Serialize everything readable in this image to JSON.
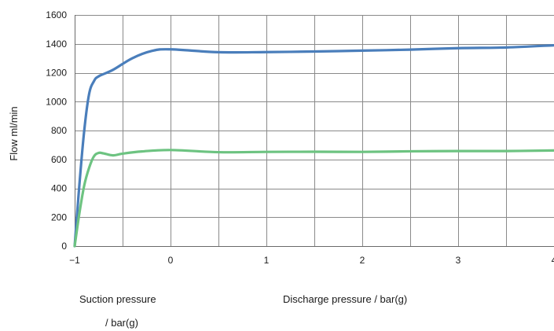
{
  "chart_data": {
    "type": "line",
    "title": "",
    "ylabel": "Flow ml/min",
    "xlabel_suction": [
      "Suction pressure",
      "/ bar(g)"
    ],
    "xlabel_discharge": "Discharge pressure / bar(g)",
    "xlim": [
      -1,
      4
    ],
    "ylim": [
      0,
      1600
    ],
    "grid": true,
    "x_ticks": [
      -1,
      -0.5,
      0,
      0.5,
      1,
      1.5,
      2,
      2.5,
      3,
      3.5,
      4
    ],
    "x_tick_labels": [
      {
        "x": -1,
        "label": "−1"
      },
      {
        "x": 0,
        "label": "0"
      },
      {
        "x": 1,
        "label": "1"
      },
      {
        "x": 2,
        "label": "2"
      },
      {
        "x": 3,
        "label": "3"
      },
      {
        "x": 4,
        "label": "4"
      }
    ],
    "y_ticks": [
      0,
      200,
      400,
      600,
      800,
      1000,
      1200,
      1400,
      1600
    ],
    "y_tick_labels": [
      "0",
      "200",
      "400",
      "600",
      "800",
      "1000",
      "1200",
      "1400",
      "1600"
    ],
    "series": [
      {
        "color": "#4a7ebb",
        "x": [
          -1,
          -0.95,
          -0.9,
          -0.85,
          -0.8,
          -0.75,
          -0.6,
          -0.4,
          -0.2,
          0,
          0.5,
          1,
          1.5,
          2,
          2.5,
          3,
          3.5,
          4
        ],
        "y": [
          0,
          430,
          800,
          1050,
          1140,
          1175,
          1220,
          1300,
          1350,
          1362,
          1342,
          1343,
          1347,
          1353,
          1360,
          1370,
          1375,
          1390
        ]
      },
      {
        "color": "#6dc381",
        "x": [
          -1,
          -0.95,
          -0.9,
          -0.85,
          -0.8,
          -0.75,
          -0.7,
          -0.6,
          -0.5,
          -0.3,
          0,
          0.5,
          1,
          1.5,
          2,
          2.5,
          3,
          3.5,
          4
        ],
        "y": [
          0,
          230,
          420,
          540,
          620,
          645,
          642,
          628,
          640,
          655,
          665,
          650,
          652,
          653,
          652,
          656,
          658,
          658,
          662
        ]
      }
    ]
  }
}
